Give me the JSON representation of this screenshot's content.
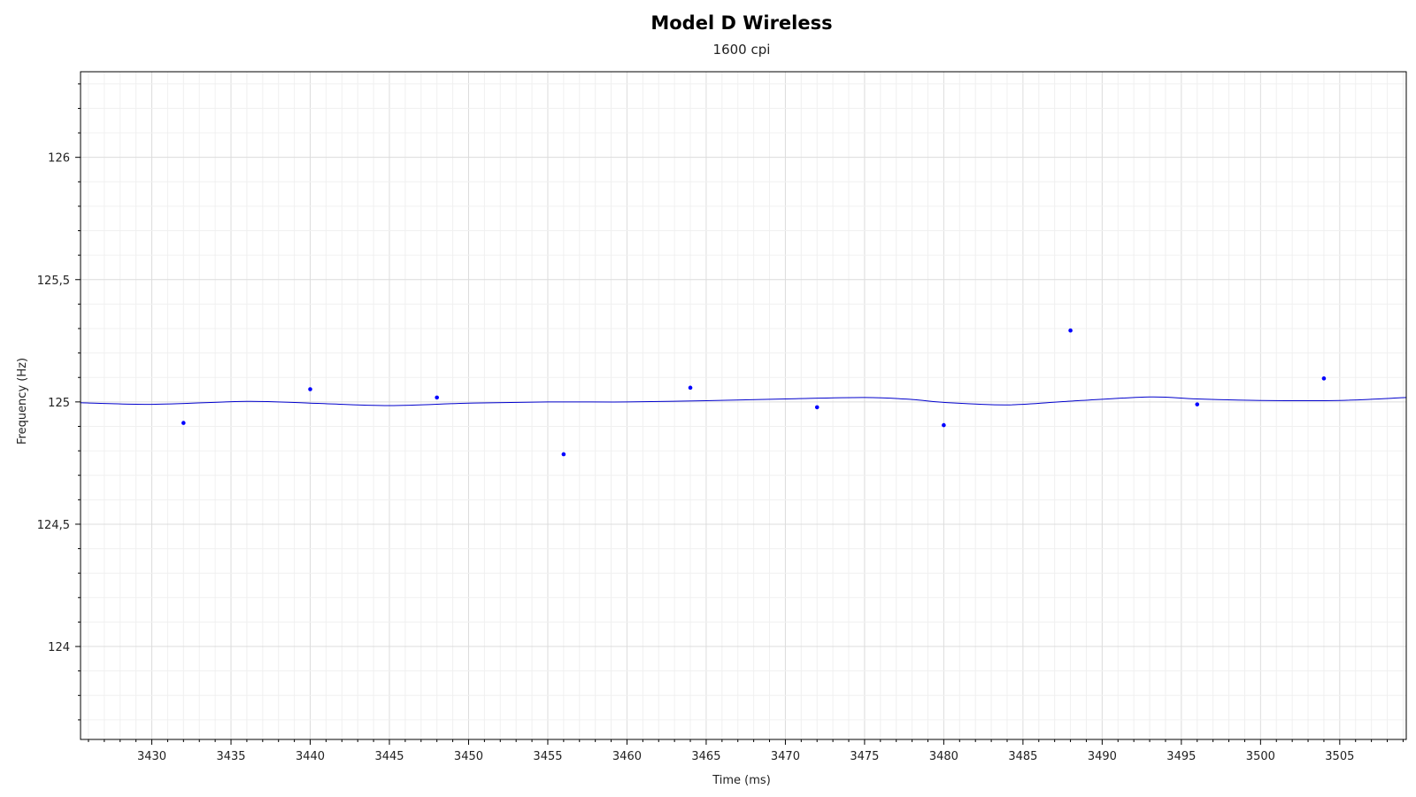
{
  "chart_data": {
    "type": "scatter",
    "title": "Model D Wireless",
    "subtitle": "1600 cpi",
    "xlabel": "Time (ms)",
    "ylabel": "Frequency (Hz)",
    "xlim": [
      3425.5,
      3509.2
    ],
    "ylim": [
      123.62,
      126.35
    ],
    "x_ticks": [
      3430,
      3435,
      3440,
      3445,
      3450,
      3455,
      3460,
      3465,
      3470,
      3475,
      3480,
      3485,
      3490,
      3495,
      3500,
      3505
    ],
    "y_ticks": [
      124,
      124.5,
      125,
      125.5,
      126
    ],
    "y_tick_labels": [
      "124",
      "124,5",
      "125",
      "125,5",
      "126"
    ],
    "grid": true,
    "colors": {
      "points": "#0000ff",
      "line": "#0000cc",
      "grid": "#e4e4e4"
    },
    "points": {
      "x": [
        3432,
        3440,
        3448,
        3456,
        3464,
        3472,
        3480,
        3488,
        3496,
        3504
      ],
      "y": [
        124.914,
        125.052,
        125.018,
        124.786,
        125.058,
        124.978,
        124.905,
        125.292,
        124.99,
        125.096
      ]
    },
    "fit_line": {
      "x": [
        3425.5,
        3430,
        3436,
        3440,
        3445,
        3450,
        3455,
        3460,
        3465,
        3470,
        3475,
        3478,
        3480,
        3484,
        3488,
        3493,
        3496,
        3500,
        3505,
        3509.2
      ],
      "y": [
        124.997,
        124.99,
        125.002,
        124.995,
        124.985,
        124.995,
        125.0,
        125.0,
        125.005,
        125.012,
        125.018,
        125.01,
        124.998,
        124.988,
        125.003,
        125.02,
        125.012,
        125.006,
        125.006,
        125.018
      ]
    }
  }
}
